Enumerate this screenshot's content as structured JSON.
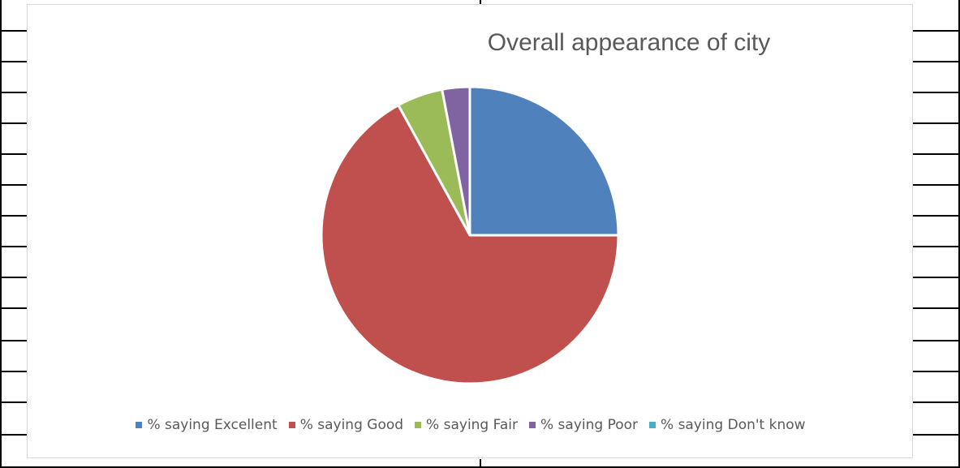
{
  "chart_data": {
    "type": "pie",
    "title": "Overall appearance of city",
    "categories": [
      "% saying Excellent",
      "% saying Good",
      "% saying Fair",
      "% saying Poor",
      "% saying Don't know"
    ],
    "values": [
      25,
      67,
      5,
      3,
      0
    ],
    "colors": [
      "#4f81bd",
      "#c0504d",
      "#9bbb59",
      "#8064a2",
      "#4bacc6"
    ],
    "legend_position": "bottom"
  }
}
